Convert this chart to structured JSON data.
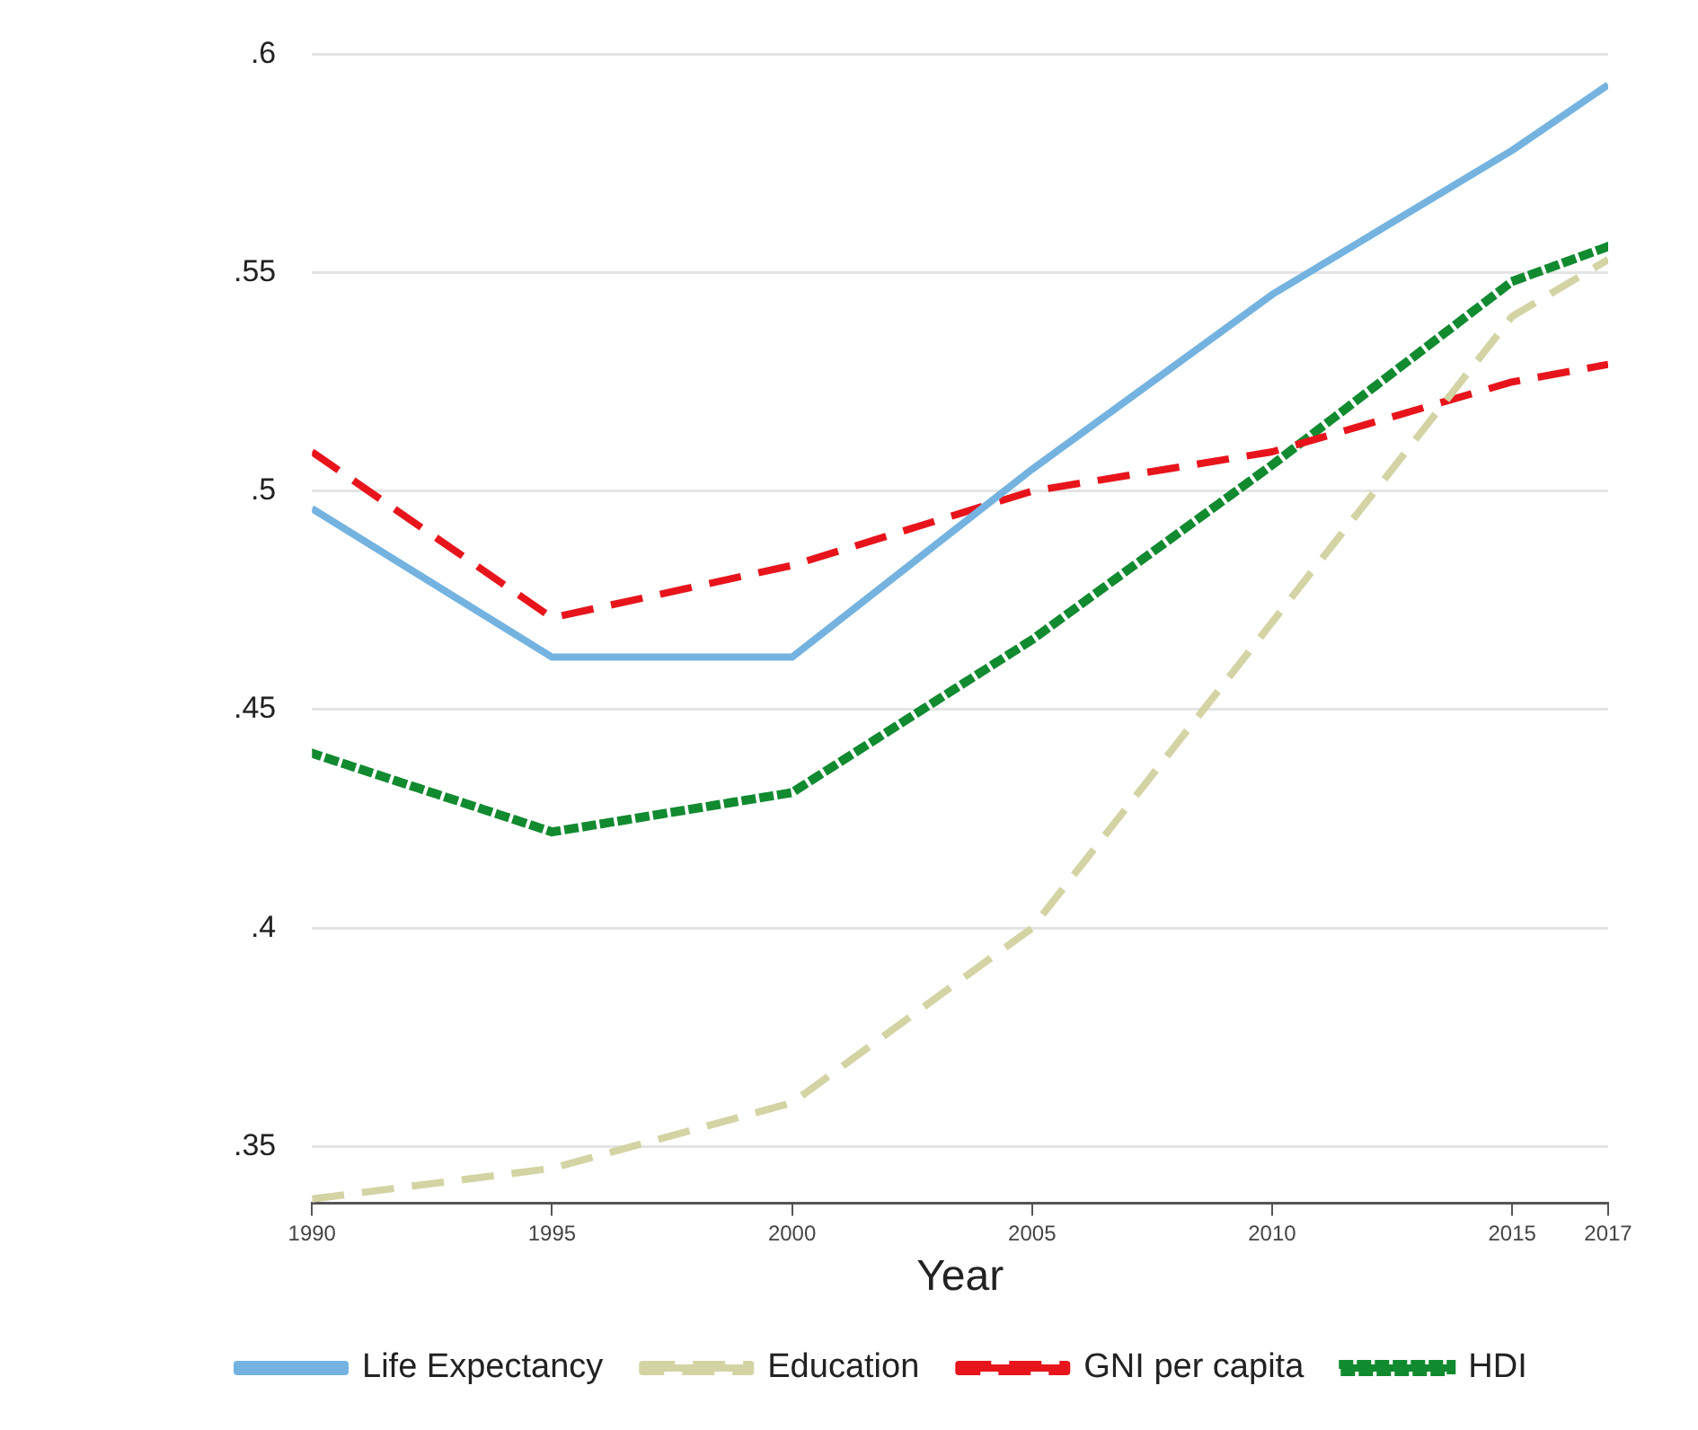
{
  "chart_data": {
    "type": "line",
    "xlabel": "Year",
    "x": [
      1990,
      1995,
      2000,
      2005,
      2010,
      2015,
      2017
    ],
    "xlim": [
      1990,
      2017
    ],
    "xticks": [
      1990,
      1995,
      2000,
      2005,
      2010,
      2015,
      2017
    ],
    "ylim": [
      0.337,
      0.6
    ],
    "yticks": [
      {
        "value": 0.35,
        "label": ".35"
      },
      {
        "value": 0.4,
        "label": ".4"
      },
      {
        "value": 0.45,
        "label": ".45"
      },
      {
        "value": 0.5,
        "label": ".5"
      },
      {
        "value": 0.55,
        "label": ".55"
      },
      {
        "value": 0.6,
        "label": ".6"
      }
    ],
    "grid": "y",
    "legend": "bottom",
    "marker": "none",
    "series": [
      {
        "name": "Life Expectancy",
        "color": "#74b3e0",
        "line_style": "solid",
        "values": [
          0.496,
          0.462,
          0.462,
          0.505,
          0.545,
          0.578,
          0.593
        ]
      },
      {
        "name": "Education",
        "color": "#d3d3a4",
        "line_style": "dashed",
        "values": [
          0.338,
          0.345,
          0.36,
          0.4,
          0.47,
          0.54,
          0.553
        ]
      },
      {
        "name": "GNI per capita",
        "color": "#e8141c",
        "line_style": "dashed",
        "values": [
          0.509,
          0.471,
          0.483,
          0.5,
          0.509,
          0.525,
          0.529
        ]
      },
      {
        "name": "HDI",
        "color": "#118a30",
        "line_style": "dotted",
        "values": [
          0.44,
          0.422,
          0.431,
          0.466,
          0.506,
          0.548,
          0.556
        ]
      }
    ]
  }
}
